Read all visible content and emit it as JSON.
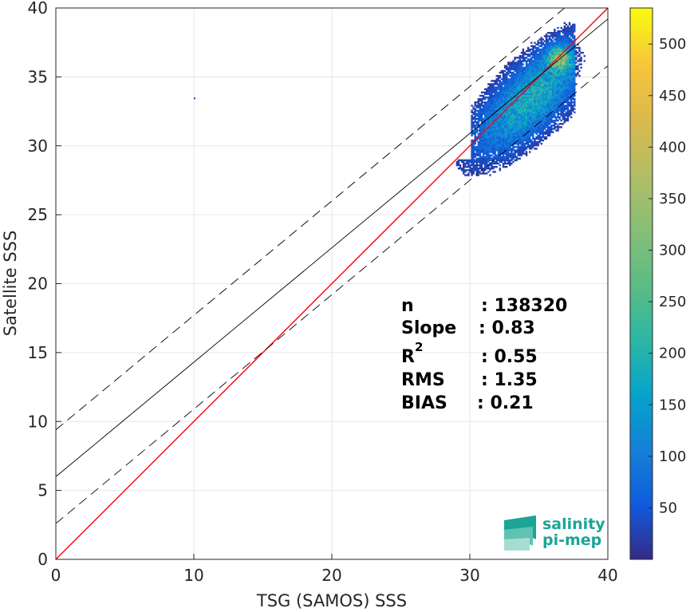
{
  "chart_data": {
    "type": "heatmap",
    "title": "",
    "xlabel": "TSG (SAMOS) SSS",
    "ylabel": "Satellite SSS",
    "xlim": [
      0,
      40
    ],
    "ylim": [
      0,
      40
    ],
    "x_ticks": [
      "0",
      "10",
      "20",
      "30",
      "40"
    ],
    "y_ticks": [
      "0",
      "5",
      "10",
      "15",
      "20",
      "25",
      "30",
      "35",
      "40"
    ],
    "grid": true,
    "density": {
      "description_points": [
        {
          "x": 36.5,
          "y": 36.5,
          "count": 300
        },
        {
          "x": 36.0,
          "y": 35.5,
          "count": 220
        },
        {
          "x": 35.5,
          "y": 35.0,
          "count": 170
        },
        {
          "x": 35.0,
          "y": 34.5,
          "count": 130
        },
        {
          "x": 34.0,
          "y": 34.0,
          "count": 100
        },
        {
          "x": 33.0,
          "y": 33.0,
          "count": 80
        },
        {
          "x": 32.0,
          "y": 32.0,
          "count": 60
        },
        {
          "x": 33.5,
          "y": 35.5,
          "count": 50
        },
        {
          "x": 31.5,
          "y": 30.5,
          "count": 40
        }
      ],
      "x_range": [
        29,
        39
      ],
      "y_range": [
        26.5,
        39.5
      ],
      "outlier": {
        "x": 10.0,
        "y": 33.5
      }
    },
    "lines": [
      {
        "name": "1:1",
        "color": "#ff0000",
        "style": "solid",
        "slope": 1.0,
        "intercept": 0.0
      },
      {
        "name": "fit",
        "color": "#000000",
        "style": "solid",
        "slope": 0.83,
        "intercept": 6.0
      },
      {
        "name": "fit+",
        "color": "#000000",
        "style": "dashed",
        "slope": 0.83,
        "intercept": 9.4
      },
      {
        "name": "fit-",
        "color": "#000000",
        "style": "dashed",
        "slope": 0.83,
        "intercept": 2.6
      },
      {
        "name": "upper",
        "color": "#000000",
        "style": "solid",
        "slope": 0.85,
        "intercept": 9.4
      }
    ],
    "colorbar": {
      "min": 0,
      "max": 535,
      "ticks": [
        "50",
        "100",
        "150",
        "200",
        "250",
        "300",
        "350",
        "400",
        "450",
        "500"
      ],
      "colormap": "parula"
    },
    "stats": [
      {
        "label": "n",
        "sep": ": 138320"
      },
      {
        "label": "Slope",
        "sep": ": 0.83"
      },
      {
        "label": "R",
        "sup": "2",
        "sep": ": 0.55"
      },
      {
        "label": "RMS",
        "sep": ": 1.35"
      },
      {
        "label": "BIAS",
        "sep": ": 0.21"
      }
    ]
  },
  "logo": {
    "line1": "salinity",
    "line2": "pi-mep"
  }
}
